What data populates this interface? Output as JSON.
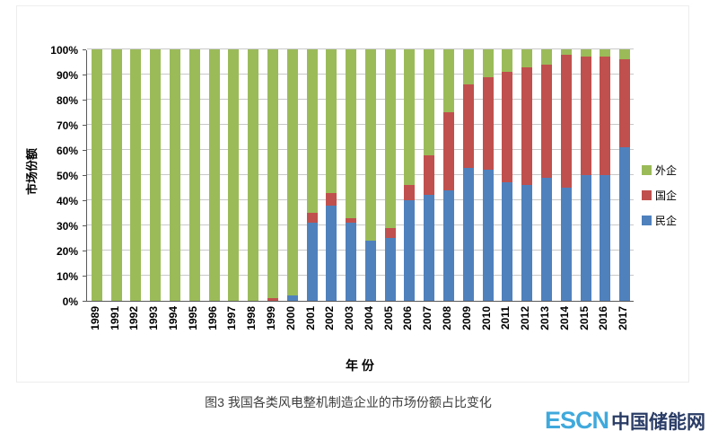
{
  "page": {
    "caption": "图3 我国各类风电整机制造企业的市场份额占比变化",
    "logo": {
      "latin": "ESCN",
      "cn": "中国储能网",
      "latin_color": "#3FA9DC",
      "cn_color": "#2A3C66"
    }
  },
  "chart_data": {
    "type": "bar",
    "stacked": true,
    "title": "",
    "xlabel": "年 份",
    "ylabel": "市场份额",
    "ylim": [
      0,
      100
    ],
    "ytick_step": 10,
    "ytick_suffix": "%",
    "grid": true,
    "legend_position": "right",
    "legend_order": [
      "外企",
      "国企",
      "民企"
    ],
    "categories": [
      "1989",
      "1991",
      "1992",
      "1993",
      "1994",
      "1995",
      "1996",
      "1997",
      "1998",
      "1999",
      "2000",
      "2001",
      "2002",
      "2003",
      "2004",
      "2005",
      "2006",
      "2007",
      "2008",
      "2009",
      "2010",
      "2011",
      "2012",
      "2013",
      "2014",
      "2015",
      "2016",
      "2017"
    ],
    "series": [
      {
        "name": "民企",
        "color": "#4F81BD",
        "values": [
          0,
          0,
          0,
          0,
          0,
          0,
          0,
          0,
          0,
          0,
          2,
          31,
          38,
          31,
          24,
          25,
          40,
          42,
          44,
          53,
          52,
          47,
          46,
          49,
          45,
          50,
          50,
          61
        ]
      },
      {
        "name": "国企",
        "color": "#C0504D",
        "values": [
          0,
          0,
          0,
          0,
          0,
          0,
          0,
          0,
          0,
          1,
          0,
          4,
          5,
          2,
          0,
          4,
          6,
          16,
          31,
          33,
          37,
          44,
          47,
          45,
          53,
          47,
          47,
          35
        ]
      },
      {
        "name": "外企",
        "color": "#9BBB59",
        "values": [
          100,
          100,
          100,
          100,
          100,
          100,
          100,
          100,
          100,
          99,
          98,
          65,
          57,
          67,
          76,
          71,
          54,
          42,
          25,
          14,
          11,
          9,
          7,
          6,
          2,
          3,
          3,
          4
        ]
      }
    ]
  }
}
